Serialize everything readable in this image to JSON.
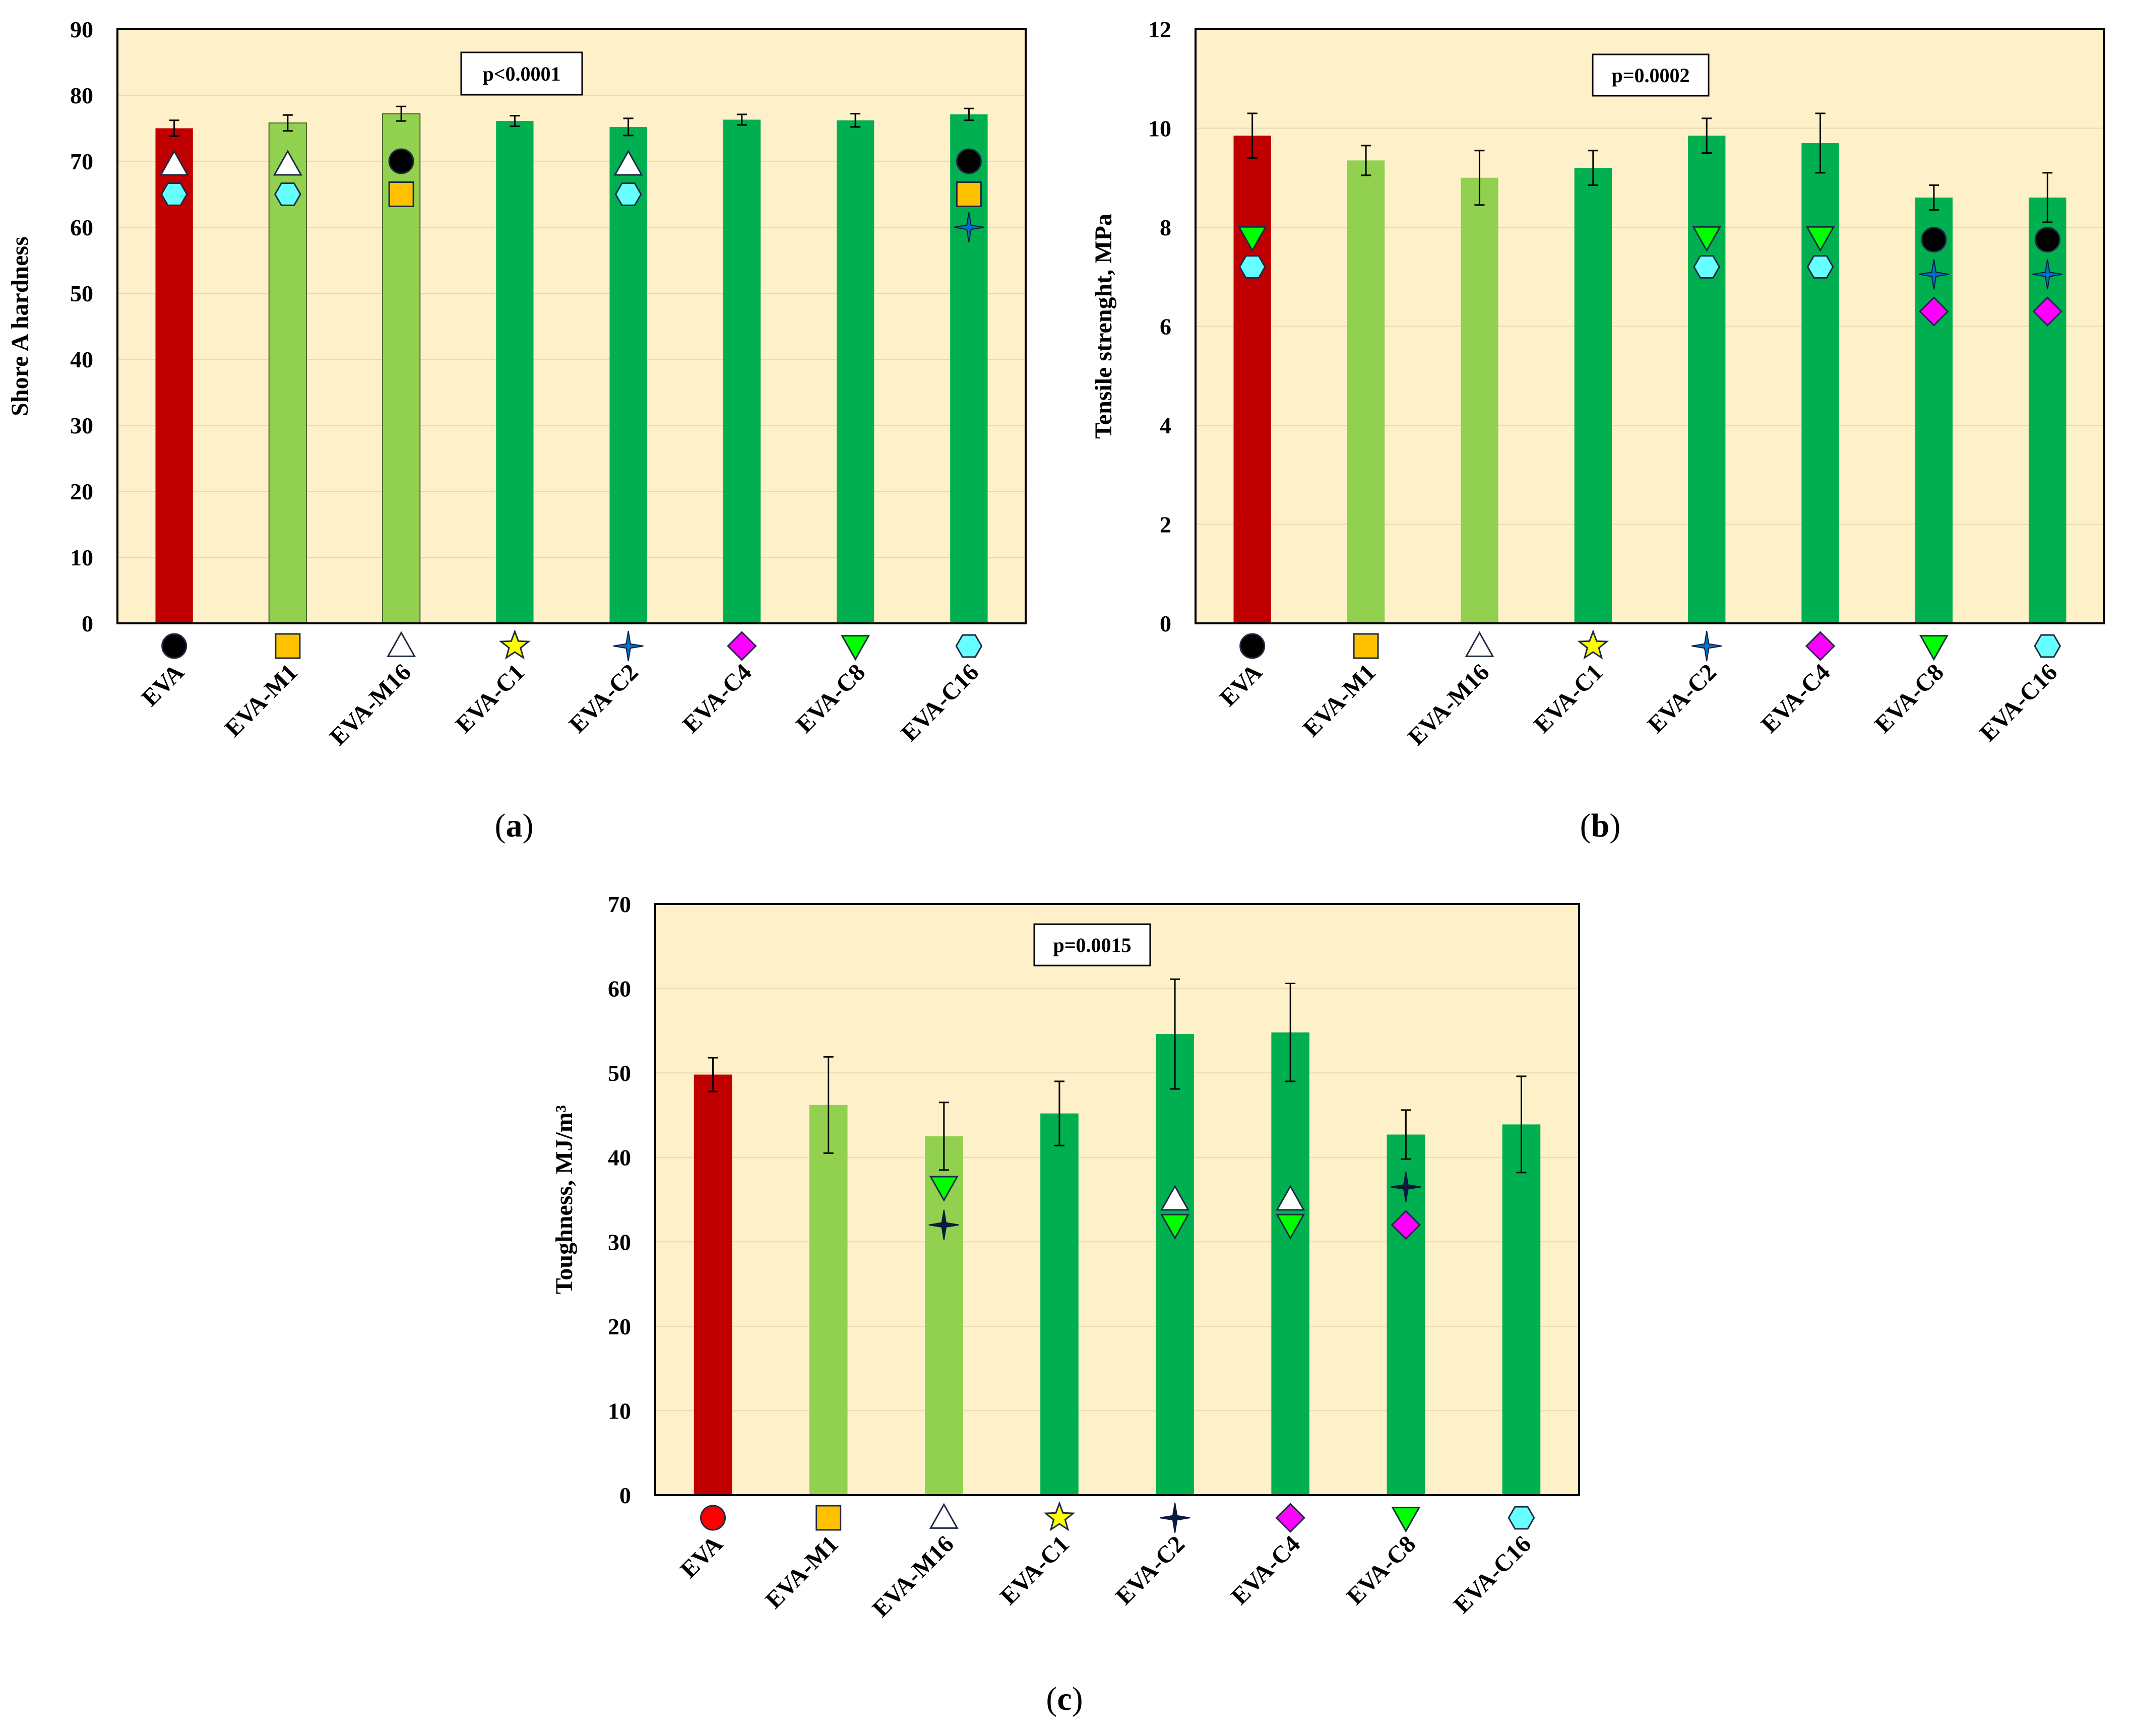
{
  "colors": {
    "plot_bg": "#FEF0C8",
    "bar_red": "#C00000",
    "bar_lightgreen": "#92D050",
    "bar_green": "#00B050",
    "gridline": "#EAD9B0"
  },
  "legend_symbols": [
    {
      "category": "EVA",
      "icon": "circle-icon"
    },
    {
      "category": "EVA-M1",
      "icon": "square-icon"
    },
    {
      "category": "EVA-M16",
      "icon": "triangle-up-icon"
    },
    {
      "category": "EVA-C1",
      "icon": "star5-icon"
    },
    {
      "category": "EVA-C2",
      "icon": "star4-icon"
    },
    {
      "category": "EVA-C4",
      "icon": "diamond-icon"
    },
    {
      "category": "EVA-C8",
      "icon": "triangle-down-icon"
    },
    {
      "category": "EVA-C16",
      "icon": "hexagon-icon"
    }
  ],
  "chart_data": [
    {
      "id": "a",
      "type": "bar",
      "caption": "a",
      "ylabel": "Shore A hardness",
      "pvalue": "p<0.0001",
      "ylim": [
        0,
        90
      ],
      "yticks": [
        0,
        10,
        20,
        30,
        40,
        50,
        60,
        70,
        80,
        90
      ],
      "grid": true,
      "categories": [
        "EVA",
        "EVA-M1",
        "EVA-M16",
        "EVA-C1",
        "EVA-C2",
        "EVA-C4",
        "EVA-C8",
        "EVA-C16"
      ],
      "values": [
        75.0,
        75.8,
        77.2,
        76.1,
        75.2,
        76.3,
        76.2,
        77.1
      ],
      "errors": [
        1.2,
        1.2,
        1.1,
        0.8,
        1.3,
        0.8,
        1.0,
        0.9
      ],
      "bar_colors": [
        "red",
        "lightgreen",
        "lightgreen",
        "green",
        "green",
        "green",
        "green",
        "green"
      ],
      "cat_symbols": [
        {
          "symbol": "circle",
          "color": "#000000"
        },
        {
          "symbol": "square",
          "color": "#FFC000"
        },
        {
          "symbol": "triangle-up",
          "color": "#FFFFFF"
        },
        {
          "symbol": "star5",
          "color": "#FFFF00"
        },
        {
          "symbol": "star4",
          "color": "#0070C0"
        },
        {
          "symbol": "diamond",
          "color": "#FF00FF"
        },
        {
          "symbol": "triangle-down",
          "color": "#00FF00"
        },
        {
          "symbol": "hexagon",
          "color": "#66FFFF"
        }
      ],
      "significance": [
        {
          "category": "EVA",
          "symbol": "triangle-up",
          "color": "#FFFFFF",
          "y": 69.5
        },
        {
          "category": "EVA",
          "symbol": "hexagon",
          "color": "#66FFFF",
          "y": 65
        },
        {
          "category": "EVA-M1",
          "symbol": "triangle-up",
          "color": "#FFFFFF",
          "y": 69.5
        },
        {
          "category": "EVA-M1",
          "symbol": "hexagon",
          "color": "#66FFFF",
          "y": 65
        },
        {
          "category": "EVA-M16",
          "symbol": "circle",
          "color": "#000000",
          "y": 70
        },
        {
          "category": "EVA-M16",
          "symbol": "square",
          "color": "#FFC000",
          "y": 65
        },
        {
          "category": "EVA-C2",
          "symbol": "triangle-up",
          "color": "#FFFFFF",
          "y": 69.5
        },
        {
          "category": "EVA-C2",
          "symbol": "hexagon",
          "color": "#66FFFF",
          "y": 65
        },
        {
          "category": "EVA-C16",
          "symbol": "circle",
          "color": "#000000",
          "y": 70
        },
        {
          "category": "EVA-C16",
          "symbol": "square",
          "color": "#FFC000",
          "y": 65
        },
        {
          "category": "EVA-C16",
          "symbol": "star4",
          "color": "#0070C0",
          "y": 60
        }
      ]
    },
    {
      "id": "b",
      "type": "bar",
      "caption": "b",
      "ylabel": "Tensile strenght, MPa",
      "pvalue": "p=0.0002",
      "ylim": [
        0,
        12
      ],
      "yticks": [
        0,
        2,
        4,
        6,
        8,
        10,
        12
      ],
      "grid": true,
      "categories": [
        "EVA",
        "EVA-M1",
        "EVA-M16",
        "EVA-C1",
        "EVA-C2",
        "EVA-C4",
        "EVA-C8",
        "EVA-C16"
      ],
      "values": [
        9.85,
        9.35,
        9.0,
        9.2,
        9.85,
        9.7,
        8.6,
        8.6
      ],
      "errors": [
        0.45,
        0.3,
        0.55,
        0.35,
        0.35,
        0.6,
        0.25,
        0.5
      ],
      "bar_colors": [
        "red",
        "lightgreen",
        "lightgreen",
        "green",
        "green",
        "green",
        "green",
        "green"
      ],
      "cat_symbols": [
        {
          "symbol": "circle",
          "color": "#000000"
        },
        {
          "symbol": "square",
          "color": "#FFC000"
        },
        {
          "symbol": "triangle-up",
          "color": "#FFFFFF"
        },
        {
          "symbol": "star5",
          "color": "#FFFF00"
        },
        {
          "symbol": "star4",
          "color": "#0070C0"
        },
        {
          "symbol": "diamond",
          "color": "#FF00FF"
        },
        {
          "symbol": "triangle-down",
          "color": "#00FF00"
        },
        {
          "symbol": "hexagon",
          "color": "#66FFFF"
        }
      ],
      "significance": [
        {
          "category": "EVA",
          "symbol": "triangle-down",
          "color": "#00FF00",
          "y": 7.8
        },
        {
          "category": "EVA",
          "symbol": "hexagon",
          "color": "#66FFFF",
          "y": 7.2
        },
        {
          "category": "EVA-C2",
          "symbol": "triangle-down",
          "color": "#00FF00",
          "y": 7.8
        },
        {
          "category": "EVA-C2",
          "symbol": "hexagon",
          "color": "#66FFFF",
          "y": 7.2
        },
        {
          "category": "EVA-C4",
          "symbol": "triangle-down",
          "color": "#00FF00",
          "y": 7.8
        },
        {
          "category": "EVA-C4",
          "symbol": "hexagon",
          "color": "#66FFFF",
          "y": 7.2
        },
        {
          "category": "EVA-C8",
          "symbol": "circle",
          "color": "#000000",
          "y": 7.75
        },
        {
          "category": "EVA-C8",
          "symbol": "star4",
          "color": "#0070C0",
          "y": 7.05
        },
        {
          "category": "EVA-C8",
          "symbol": "diamond",
          "color": "#FF00FF",
          "y": 6.3
        },
        {
          "category": "EVA-C16",
          "symbol": "circle",
          "color": "#000000",
          "y": 7.75
        },
        {
          "category": "EVA-C16",
          "symbol": "star4",
          "color": "#0070C0",
          "y": 7.05
        },
        {
          "category": "EVA-C16",
          "symbol": "diamond",
          "color": "#FF00FF",
          "y": 6.3
        }
      ]
    },
    {
      "id": "c",
      "type": "bar",
      "caption": "c",
      "ylabel": "Toughness, MJ/m³",
      "pvalue": "p=0.0015",
      "ylim": [
        0,
        70
      ],
      "yticks": [
        0,
        10,
        20,
        30,
        40,
        50,
        60,
        70
      ],
      "grid": true,
      "categories": [
        "EVA",
        "EVA-M1",
        "EVA-M16",
        "EVA-C1",
        "EVA-C2",
        "EVA-C4",
        "EVA-C8",
        "EVA-C16"
      ],
      "values": [
        49.8,
        46.2,
        42.5,
        45.2,
        54.6,
        54.8,
        42.7,
        43.9
      ],
      "errors": [
        2.0,
        5.7,
        4.0,
        3.8,
        6.5,
        5.8,
        2.9,
        5.7
      ],
      "bar_colors": [
        "red",
        "lightgreen",
        "lightgreen",
        "green",
        "green",
        "green",
        "green",
        "green"
      ],
      "cat_symbols": [
        {
          "symbol": "circle",
          "color": "#FF0000"
        },
        {
          "symbol": "square",
          "color": "#FFC000"
        },
        {
          "symbol": "triangle-up",
          "color": "#FFFFFF"
        },
        {
          "symbol": "star5",
          "color": "#FFFF00"
        },
        {
          "symbol": "star4",
          "color": "#0B1B3F"
        },
        {
          "symbol": "diamond",
          "color": "#FF00FF"
        },
        {
          "symbol": "triangle-down",
          "color": "#00FF00"
        },
        {
          "symbol": "hexagon",
          "color": "#66FFFF"
        }
      ],
      "significance": [
        {
          "category": "EVA-M16",
          "symbol": "triangle-down",
          "color": "#00FF00",
          "y": 36.5
        },
        {
          "category": "EVA-M16",
          "symbol": "star4",
          "color": "#0B1B3F",
          "y": 32
        },
        {
          "category": "EVA-C2",
          "symbol": "triangle-up",
          "color": "#FFFFFF",
          "y": 35
        },
        {
          "category": "EVA-C2",
          "symbol": "triangle-down",
          "color": "#00FF00",
          "y": 32
        },
        {
          "category": "EVA-C4",
          "symbol": "triangle-up",
          "color": "#FFFFFF",
          "y": 35
        },
        {
          "category": "EVA-C4",
          "symbol": "triangle-down",
          "color": "#00FF00",
          "y": 32
        },
        {
          "category": "EVA-C8",
          "symbol": "star4",
          "color": "#0B1B3F",
          "y": 36.5
        },
        {
          "category": "EVA-C8",
          "symbol": "diamond",
          "color": "#FF00FF",
          "y": 32
        }
      ]
    }
  ]
}
